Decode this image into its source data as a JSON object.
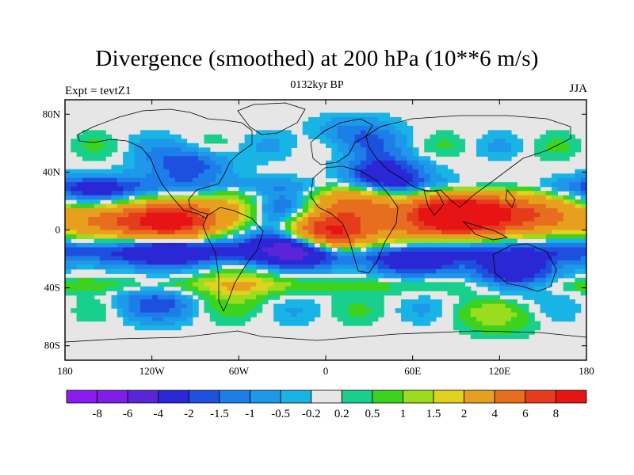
{
  "title": "Divergence (smoothed) at 200 hPa (10**6 m/s)",
  "experiment": "Expt = tevtZ1",
  "period": "0132kyr BP",
  "season": "JJA",
  "colors": {
    "frame": "#000000",
    "land_outline": "#000000",
    "background": "#ffffff",
    "neutral": "#e6e6e6"
  },
  "map": {
    "projection": "cylindrical-equidistant",
    "lon_range": [
      -180,
      180
    ],
    "lat_range": [
      -90,
      90
    ],
    "y_ticks": [
      {
        "lat": 80,
        "label": "80N"
      },
      {
        "lat": 40,
        "label": "40N"
      },
      {
        "lat": 0,
        "label": "0"
      },
      {
        "lat": -40,
        "label": "40S"
      },
      {
        "lat": -80,
        "label": "80S"
      }
    ],
    "x_ticks": [
      {
        "lon": -180,
        "label": "180"
      },
      {
        "lon": -120,
        "label": "120W"
      },
      {
        "lon": -60,
        "label": "60W"
      },
      {
        "lon": 0,
        "label": "0"
      },
      {
        "lon": 60,
        "label": "60E"
      },
      {
        "lon": 120,
        "label": "120E"
      },
      {
        "lon": 180,
        "label": "180"
      }
    ]
  },
  "colorbar": {
    "labels": [
      "-8",
      "-6",
      "-4",
      "-2",
      "-1.5",
      "-1",
      "-0.5",
      "-0.2",
      "0.2",
      "0.5",
      "1",
      "1.5",
      "2",
      "4",
      "6",
      "8"
    ],
    "colors": [
      "#8a1cf0",
      "#7f1ee6",
      "#5a24d8",
      "#2a28d4",
      "#1e50e0",
      "#1e7ee8",
      "#1e98e8",
      "#18b4e6",
      "#e6e6e6",
      "#18d08c",
      "#3cd21e",
      "#9adc1e",
      "#e0d21e",
      "#e6a01e",
      "#e66e1e",
      "#e63c1e",
      "#e61414"
    ]
  },
  "chart_data": {
    "type": "heatmap",
    "title": "Divergence (smoothed) at 200 hPa (10**6 m/s)",
    "x_axis": "longitude",
    "y_axis": "latitude",
    "xlim": [
      -180,
      180
    ],
    "ylim": [
      -90,
      90
    ],
    "levels": [
      -8,
      -6,
      -4,
      -2,
      -1.5,
      -1,
      -0.5,
      -0.2,
      0.2,
      0.5,
      1,
      1.5,
      2,
      4,
      6,
      8
    ],
    "features": [
      {
        "lon": -108,
        "lat": 5,
        "value": 9
      },
      {
        "lon": -150,
        "lat": 6,
        "value": 3.5
      },
      {
        "lon": -62,
        "lat": 18,
        "value": 2
      },
      {
        "lon": 2,
        "lat": -2,
        "value": 9
      },
      {
        "lon": 10,
        "lat": 22,
        "value": 2.5
      },
      {
        "lon": 30,
        "lat": 18,
        "value": 2.5
      },
      {
        "lon": 55,
        "lat": -8,
        "value": 2.5
      },
      {
        "lon": 90,
        "lat": 12,
        "value": 8
      },
      {
        "lon": 82,
        "lat": 8,
        "value": 4
      },
      {
        "lon": 115,
        "lat": 8,
        "value": 4
      },
      {
        "lon": 150,
        "lat": 10,
        "value": 3
      },
      {
        "lon": 130,
        "lat": 22,
        "value": 1.5
      },
      {
        "lon": -30,
        "lat": 12,
        "value": -3.5
      },
      {
        "lon": 40,
        "lat": 38,
        "value": -3
      },
      {
        "lon": -110,
        "lat": -12,
        "value": -3
      },
      {
        "lon": -20,
        "lat": -12,
        "value": -5
      },
      {
        "lon": 60,
        "lat": -20,
        "value": -3
      },
      {
        "lon": 130,
        "lat": -30,
        "value": -3
      },
      {
        "lon": -158,
        "lat": 24,
        "value": -2
      },
      {
        "lon": -95,
        "lat": 45,
        "value": -2
      },
      {
        "lon": 20,
        "lat": 65,
        "value": -1.5
      },
      {
        "lon": -120,
        "lat": -50,
        "value": -1.5
      },
      {
        "lon": -60,
        "lat": -38,
        "value": 1.5
      },
      {
        "lon": 120,
        "lat": -60,
        "value": 1
      }
    ]
  }
}
